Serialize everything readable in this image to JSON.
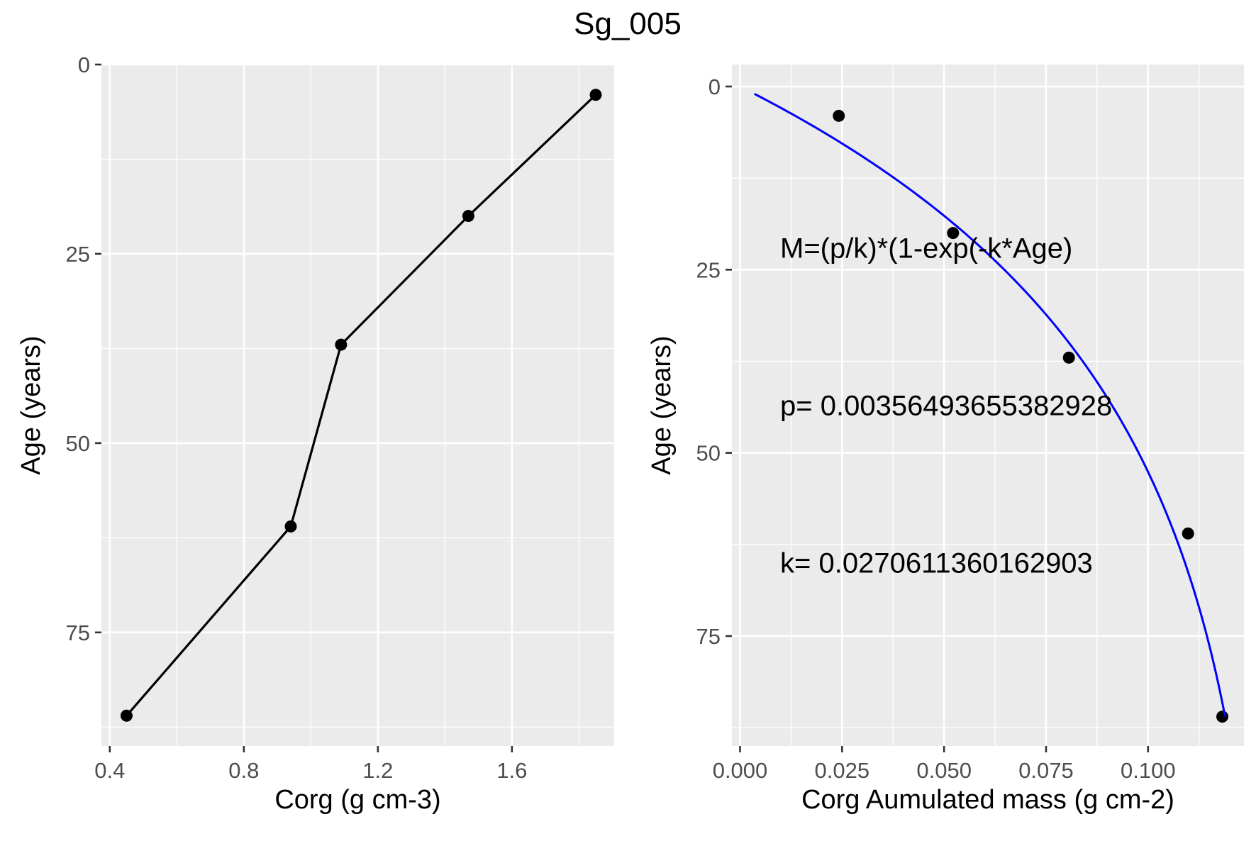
{
  "title": "Sg_005",
  "chart_data": [
    {
      "type": "line",
      "xlabel": "Corg (g cm-3)",
      "ylabel": "Age (years)",
      "xlim": [
        0.375,
        1.905
      ],
      "ylim": [
        0,
        90
      ],
      "y_reversed": true,
      "x_ticks": [
        0.4,
        0.8,
        1.2,
        1.6
      ],
      "x_tick_labels": [
        "0.4",
        "0.8",
        "1.2",
        "1.6"
      ],
      "y_ticks": [
        0,
        25,
        50,
        75
      ],
      "y_tick_labels": [
        "0",
        "25",
        "50",
        "75"
      ],
      "grid": true,
      "series": [
        {
          "x": [
            1.85,
            1.47,
            1.09,
            0.94,
            0.45
          ],
          "y": [
            4,
            20,
            37,
            61,
            86
          ],
          "color": "#000000",
          "points": true,
          "line": true
        }
      ]
    },
    {
      "type": "scatter",
      "xlabel": "Corg Aumulated mass (g cm-2)",
      "ylabel": "Age (years)",
      "xlim": [
        -0.002,
        0.1235
      ],
      "ylim": [
        -3,
        90
      ],
      "y_reversed": true,
      "x_ticks": [
        0.0,
        0.025,
        0.05,
        0.075,
        0.1
      ],
      "x_tick_labels": [
        "0.000",
        "0.025",
        "0.050",
        "0.075",
        "0.100"
      ],
      "y_ticks": [
        0,
        25,
        50,
        75
      ],
      "y_tick_labels": [
        "0",
        "25",
        "50",
        "75"
      ],
      "grid": true,
      "series": [
        {
          "x": [
            0.0242,
            0.0522,
            0.0806,
            0.1098,
            0.1182
          ],
          "y": [
            4,
            20,
            37,
            61,
            86
          ],
          "color": "#000000",
          "points": true,
          "line": false
        },
        {
          "fit": "M=(p/k)*(1-exp(-k*Age)",
          "p": 0.00356493655382928,
          "k": 0.0270611360162903,
          "age_range": [
            1,
            86
          ],
          "color": "#0000ff"
        }
      ],
      "annotations": [
        "M=(p/k)*(1-exp(-k*Age)",
        "p= 0.00356493655382928",
        "k= 0.0270611360162903"
      ]
    }
  ]
}
